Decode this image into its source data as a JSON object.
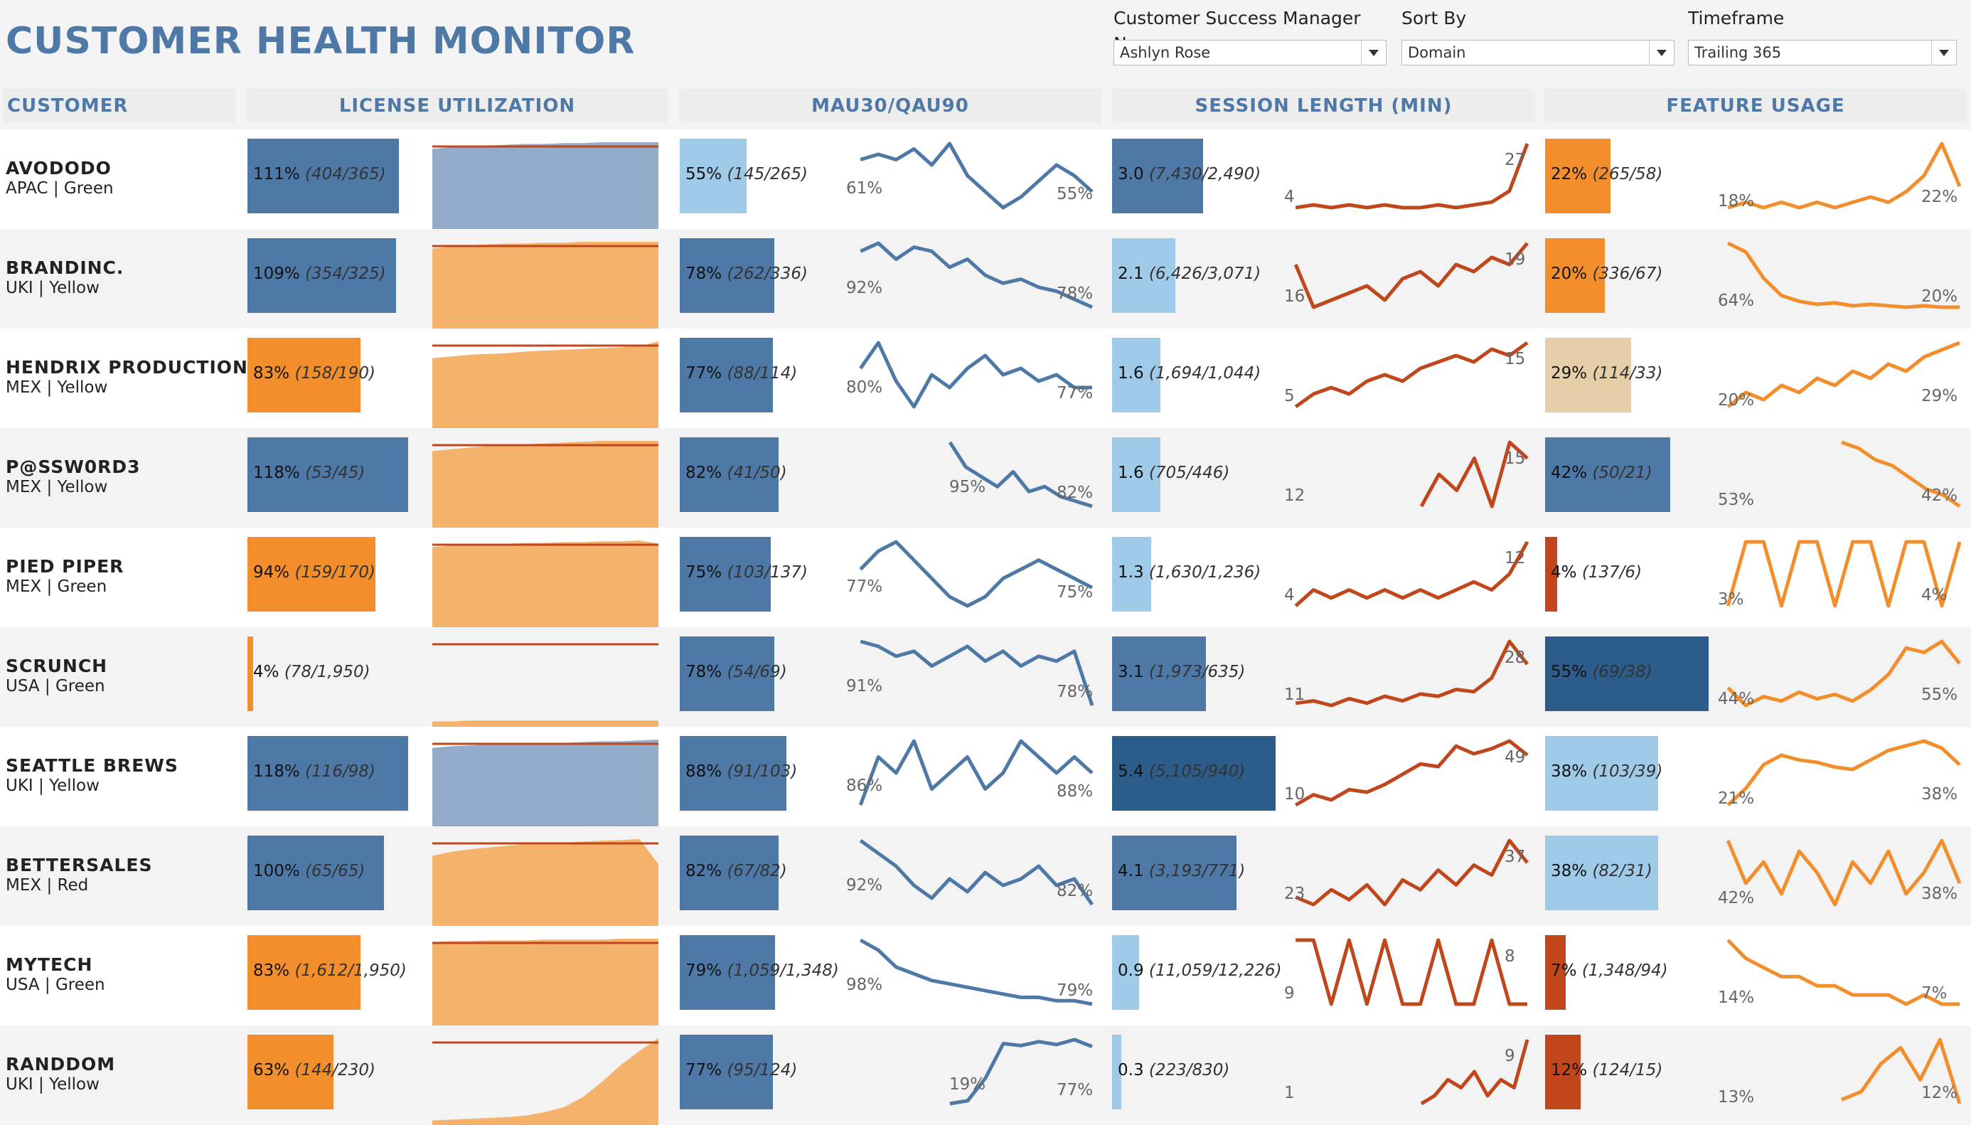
{
  "title": "CUSTOMER HEALTH MONITOR",
  "filters": [
    {
      "label": "Customer Success Manager Name",
      "value": "Ashlyn Rose"
    },
    {
      "label": "Sort By",
      "value": "Domain"
    },
    {
      "label": "Timeframe",
      "value": "Trailing 365"
    }
  ],
  "columns": [
    "CUSTOMER",
    "LICENSE UTILIZATION",
    "MAU30/QAU90",
    "SESSION LENGTH (MIN)",
    "FEATURE USAGE"
  ],
  "colors": {
    "blue_dark": "#2c5c8a",
    "blue": "#4e79a7",
    "blue_light": "#a0cbe8",
    "orange": "#f28e2b",
    "orange_light": "#f5b26b",
    "orange_dark": "#c0461b",
    "tan": "#e6cfa8",
    "title": "#4e79a7"
  },
  "chart_data": {
    "type": "table",
    "rows": [
      {
        "name": "AVODODO",
        "region": "APAC",
        "health": "Green",
        "sub": "APAC | Green",
        "license": {
          "pct": 111,
          "label": "111%",
          "detail": "(404/365)",
          "color": "blue",
          "fill": "blue",
          "trend": [
            92,
            94,
            95,
            96,
            97,
            98,
            98,
            99,
            99,
            100,
            100,
            100,
            100
          ]
        },
        "mau": {
          "pct": 55,
          "label": "55%",
          "detail": "(145/265)",
          "color": "blue_light",
          "start": "61%",
          "end": "55%",
          "trend": [
            61,
            62,
            61,
            63,
            60,
            64,
            58,
            55,
            52,
            54,
            57,
            60,
            58,
            55
          ]
        },
        "session": {
          "value": 3.0,
          "label": "3.0",
          "detail": "(7,430/2,490)",
          "color": "blue",
          "start": "4",
          "end": "27",
          "trend": [
            4,
            5,
            4,
            5,
            4,
            5,
            4,
            4,
            5,
            4,
            5,
            6,
            10,
            27
          ]
        },
        "feature": {
          "pct": 22,
          "label": "22%",
          "detail": "(265/58)",
          "color": "orange",
          "start": "18%",
          "end": "22%",
          "trend": [
            18,
            19,
            18,
            19,
            18,
            19,
            18,
            19,
            20,
            19,
            21,
            24,
            30,
            22
          ]
        }
      },
      {
        "name": "BRANDINC.",
        "region": "UKI",
        "health": "Yellow",
        "sub": "UKI | Yellow",
        "license": {
          "pct": 109,
          "label": "109%",
          "detail": "(354/325)",
          "color": "blue",
          "fill": "orange",
          "trend": [
            92,
            94,
            96,
            97,
            98,
            98,
            99,
            99,
            100,
            100,
            100,
            100,
            100
          ]
        },
        "mau": {
          "pct": 78,
          "label": "78%",
          "detail": "(262/336)",
          "color": "blue",
          "start": "92%",
          "end": "78%",
          "trend": [
            92,
            94,
            90,
            93,
            92,
            88,
            90,
            86,
            84,
            85,
            83,
            82,
            80,
            78
          ]
        },
        "session": {
          "value": 2.1,
          "label": "2.1",
          "detail": "(6,426/3,071)",
          "color": "blue_light",
          "start": "16",
          "end": "19",
          "trend": [
            16,
            10,
            11,
            12,
            13,
            11,
            14,
            15,
            13,
            16,
            15,
            17,
            16,
            19
          ]
        },
        "feature": {
          "pct": 20,
          "label": "20%",
          "detail": "(336/67)",
          "color": "orange",
          "start": "64%",
          "end": "20%",
          "trend": [
            64,
            58,
            40,
            28,
            24,
            22,
            23,
            21,
            22,
            21,
            20,
            21,
            20,
            20
          ]
        }
      },
      {
        "name": "HENDRIX PRODUCTION",
        "region": "MEX",
        "health": "Yellow",
        "sub": "MEX | Yellow",
        "license": {
          "pct": 83,
          "label": "83%",
          "detail": "(158/190)",
          "color": "orange",
          "fill": "orange",
          "trend": [
            80,
            82,
            84,
            85,
            86,
            88,
            89,
            90,
            91,
            92,
            93,
            94,
            100
          ]
        },
        "mau": {
          "pct": 77,
          "label": "77%",
          "detail": "(88/114)",
          "color": "blue",
          "start": "80%",
          "end": "77%",
          "trend": [
            80,
            84,
            78,
            74,
            79,
            77,
            80,
            82,
            79,
            80,
            78,
            79,
            77,
            77
          ]
        },
        "session": {
          "value": 1.6,
          "label": "1.6",
          "detail": "(1,694/1,044)",
          "color": "blue_light",
          "start": "5",
          "end": "15",
          "trend": [
            5,
            7,
            8,
            7,
            9,
            10,
            9,
            11,
            12,
            13,
            12,
            14,
            13,
            15
          ]
        },
        "feature": {
          "pct": 29,
          "label": "29%",
          "detail": "(114/33)",
          "color": "tan",
          "start": "20%",
          "end": "29%",
          "trend": [
            20,
            22,
            21,
            23,
            22,
            24,
            23,
            25,
            24,
            26,
            25,
            27,
            28,
            29
          ]
        }
      },
      {
        "name": "P@SSW0RD3",
        "region": "MEX",
        "health": "Yellow",
        "sub": "MEX | Yellow",
        "license": {
          "pct": 118,
          "label": "118%",
          "detail": "(53/45)",
          "color": "blue",
          "fill": "orange",
          "trend": [
            88,
            90,
            92,
            94,
            95,
            96,
            97,
            98,
            99,
            100,
            100,
            100,
            100
          ]
        },
        "mau": {
          "pct": 82,
          "label": "82%",
          "detail": "(41/50)",
          "color": "blue",
          "start": "95%",
          "end": "82%",
          "trend": [
            95,
            90,
            88,
            86,
            89,
            85,
            86,
            84,
            83,
            82
          ]
        },
        "session": {
          "value": 1.6,
          "label": "1.6",
          "detail": "(705/446)",
          "color": "blue_light",
          "start": "12",
          "end": "15",
          "trend": [
            12,
            14,
            13,
            15,
            12,
            16,
            15
          ]
        },
        "feature": {
          "pct": 42,
          "label": "42%",
          "detail": "(50/21)",
          "color": "blue",
          "start": "53%",
          "end": "42%",
          "trend": [
            53,
            52,
            50,
            49,
            47,
            45,
            44,
            42
          ]
        }
      },
      {
        "name": "PIED PIPER",
        "region": "MEX",
        "health": "Green",
        "sub": "MEX | Green",
        "license": {
          "pct": 94,
          "label": "94%",
          "detail": "(159/170)",
          "color": "orange",
          "fill": "orange",
          "trend": [
            92,
            94,
            95,
            96,
            96,
            97,
            97,
            98,
            98,
            99,
            99,
            100,
            96
          ]
        },
        "mau": {
          "pct": 75,
          "label": "75%",
          "detail": "(103/137)",
          "color": "blue",
          "start": "77%",
          "end": "75%",
          "trend": [
            77,
            79,
            80,
            78,
            76,
            74,
            73,
            74,
            76,
            77,
            78,
            77,
            76,
            75
          ]
        },
        "session": {
          "value": 1.3,
          "label": "1.3",
          "detail": "(1,630/1,236)",
          "color": "blue_light",
          "start": "4",
          "end": "12",
          "trend": [
            4,
            6,
            5,
            6,
            5,
            6,
            5,
            6,
            5,
            6,
            7,
            6,
            8,
            12
          ]
        },
        "feature": {
          "pct": 4,
          "label": "4%",
          "detail": "(137/6)",
          "color": "orange_dark",
          "start": "3%",
          "end": "4%",
          "trend": [
            3,
            4,
            4,
            3,
            4,
            4,
            3,
            4,
            4,
            3,
            4,
            4,
            3,
            4
          ]
        }
      },
      {
        "name": "SCRUNCH",
        "region": "USA",
        "health": "Green",
        "sub": "USA | Green",
        "license": {
          "pct": 4,
          "label": "4%",
          "detail": "(78/1,950)",
          "color": "orange",
          "fill": "orange",
          "trend": [
            3,
            3,
            4,
            4,
            4,
            4,
            4,
            4,
            4,
            4,
            4,
            4,
            4
          ]
        },
        "mau": {
          "pct": 78,
          "label": "78%",
          "detail": "(54/69)",
          "color": "blue",
          "start": "91%",
          "end": "78%",
          "trend": [
            91,
            90,
            88,
            89,
            86,
            88,
            90,
            87,
            89,
            86,
            88,
            87,
            89,
            78
          ]
        },
        "session": {
          "value": 3.1,
          "label": "3.1",
          "detail": "(1,973/635)",
          "color": "blue",
          "start": "11",
          "end": "28",
          "trend": [
            11,
            12,
            10,
            13,
            11,
            14,
            12,
            15,
            14,
            17,
            16,
            22,
            38,
            28
          ]
        },
        "feature": {
          "pct": 55,
          "label": "55%",
          "detail": "(69/38)",
          "color": "blue_dark",
          "start": "44%",
          "end": "55%",
          "trend": [
            44,
            36,
            40,
            38,
            42,
            39,
            41,
            38,
            43,
            50,
            62,
            60,
            65,
            55
          ]
        }
      },
      {
        "name": "SEATTLE BREWS",
        "region": "UKI",
        "health": "Yellow",
        "sub": "UKI | Yellow",
        "license": {
          "pct": 118,
          "label": "118%",
          "detail": "(116/98)",
          "color": "blue",
          "fill": "blue",
          "trend": [
            90,
            92,
            93,
            94,
            95,
            95,
            96,
            96,
            97,
            98,
            98,
            99,
            100
          ]
        },
        "mau": {
          "pct": 88,
          "label": "88%",
          "detail": "(91/103)",
          "color": "blue",
          "start": "86%",
          "end": "88%",
          "trend": [
            86,
            89,
            88,
            90,
            87,
            88,
            89,
            87,
            88,
            90,
            89,
            88,
            89,
            88
          ]
        },
        "session": {
          "value": 5.4,
          "label": "5.4",
          "detail": "(5,105/940)",
          "color": "blue_dark",
          "start": "10",
          "end": "49",
          "trend": [
            10,
            18,
            14,
            22,
            20,
            26,
            34,
            42,
            40,
            56,
            50,
            54,
            60,
            49
          ]
        },
        "feature": {
          "pct": 38,
          "label": "38%",
          "detail": "(103/39)",
          "color": "blue_light",
          "start": "21%",
          "end": "38%",
          "trend": [
            21,
            28,
            38,
            42,
            40,
            39,
            37,
            36,
            40,
            44,
            46,
            48,
            45,
            38
          ]
        }
      },
      {
        "name": "BETTERSALES",
        "region": "MEX",
        "health": "Red",
        "sub": "MEX | Red",
        "license": {
          "pct": 100,
          "label": "100%",
          "detail": "(65/65)",
          "color": "blue",
          "fill": "orange",
          "trend": [
            80,
            85,
            88,
            90,
            92,
            94,
            95,
            96,
            97,
            98,
            99,
            100,
            70
          ]
        },
        "mau": {
          "pct": 82,
          "label": "82%",
          "detail": "(67/82)",
          "color": "blue",
          "start": "92%",
          "end": "82%",
          "trend": [
            92,
            90,
            88,
            85,
            83,
            86,
            84,
            87,
            85,
            86,
            88,
            85,
            86,
            82
          ]
        },
        "session": {
          "value": 4.1,
          "label": "4.1",
          "detail": "(3,193/771)",
          "color": "blue",
          "start": "23",
          "end": "37",
          "trend": [
            23,
            20,
            26,
            22,
            28,
            20,
            30,
            26,
            34,
            28,
            36,
            32,
            46,
            37
          ]
        },
        "feature": {
          "pct": 38,
          "label": "38%",
          "detail": "(82/31)",
          "color": "blue_light",
          "start": "42%",
          "end": "38%",
          "trend": [
            42,
            38,
            40,
            37,
            41,
            39,
            36,
            40,
            38,
            41,
            37,
            39,
            42,
            38
          ]
        }
      },
      {
        "name": "MYTECH",
        "region": "USA",
        "health": "Green",
        "sub": "USA | Green",
        "license": {
          "pct": 83,
          "label": "83%",
          "detail": "(1,612/1,950)",
          "color": "orange",
          "fill": "orange",
          "trend": [
            96,
            97,
            97,
            98,
            98,
            98,
            99,
            99,
            99,
            99,
            100,
            100,
            100
          ]
        },
        "mau": {
          "pct": 79,
          "label": "79%",
          "detail": "(1,059/1,348)",
          "color": "blue",
          "start": "98%",
          "end": "79%",
          "trend": [
            98,
            95,
            90,
            88,
            86,
            85,
            84,
            83,
            82,
            81,
            81,
            80,
            80,
            79
          ]
        },
        "session": {
          "value": 0.9,
          "label": "0.9",
          "detail": "(11,059/12,226)",
          "color": "blue_light",
          "start": "9",
          "end": "8",
          "trend": [
            9,
            9,
            8,
            9,
            8,
            9,
            8,
            8,
            9,
            8,
            8,
            9,
            8,
            8
          ]
        },
        "feature": {
          "pct": 7,
          "label": "7%",
          "detail": "(1,348/94)",
          "color": "orange_dark",
          "start": "14%",
          "end": "7%",
          "trend": [
            14,
            12,
            11,
            10,
            10,
            9,
            9,
            8,
            8,
            8,
            7,
            8,
            7,
            7
          ]
        }
      },
      {
        "name": "RANDDOM",
        "region": "UKI",
        "health": "Yellow",
        "sub": "UKI | Yellow",
        "license": {
          "pct": 63,
          "label": "63%",
          "detail": "(144/230)",
          "color": "orange",
          "fill": "orange",
          "trend": [
            2,
            3,
            4,
            5,
            6,
            8,
            12,
            18,
            30,
            48,
            68,
            85,
            100
          ]
        },
        "mau": {
          "pct": 77,
          "label": "77%",
          "detail": "(95/124)",
          "color": "blue",
          "start": "19%",
          "end": "77%",
          "trend": [
            19,
            22,
            45,
            80,
            78,
            82,
            79,
            84,
            77
          ]
        },
        "session": {
          "value": 0.3,
          "label": "0.3",
          "detail": "(223/830)",
          "color": "blue_light",
          "start": "1",
          "end": "9",
          "trend": [
            1,
            2,
            4,
            3,
            5,
            2,
            4,
            3,
            9
          ]
        },
        "feature": {
          "pct": 12,
          "label": "12%",
          "detail": "(124/15)",
          "color": "orange_dark",
          "start": "13%",
          "end": "12%",
          "trend": [
            13,
            15,
            22,
            26,
            18,
            28,
            12
          ]
        }
      }
    ]
  }
}
